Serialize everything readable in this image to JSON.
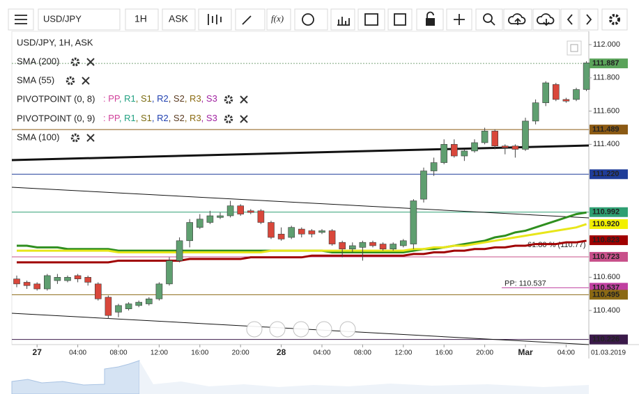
{
  "toolbar": {
    "symbol": "USD/JPY",
    "timeframe": "1H",
    "price_type": "ASK",
    "function": "f(x)"
  },
  "chart_data": {
    "type": "candlestick",
    "title": "USD/JPY, 1H, ASK",
    "categories": [
      null,
      null,
      "27",
      null,
      null,
      null,
      "04:00",
      null,
      null,
      null,
      "08:00",
      null,
      null,
      null,
      "12:00",
      null,
      null,
      null,
      "16:00",
      null,
      null,
      null,
      "20:00",
      null,
      null,
      null,
      "28",
      null,
      null,
      null,
      "04:00",
      null,
      null,
      null,
      "08:00",
      null,
      null,
      null,
      "12:00",
      null,
      null,
      null,
      "16:00",
      null,
      null,
      null,
      "20:00",
      null,
      null,
      null,
      "Mar",
      null,
      null,
      null,
      "04:00",
      null,
      null
    ],
    "open": [
      110.59,
      110.57,
      110.56,
      110.53,
      110.58,
      110.58,
      110.61,
      110.6,
      110.56,
      110.48,
      110.39,
      110.41,
      110.43,
      110.44,
      110.47,
      110.56,
      110.7,
      110.82,
      110.9,
      110.93,
      110.96,
      110.97,
      111.03,
      111.0,
      111.0,
      110.93,
      110.86,
      110.84,
      110.89,
      110.88,
      110.87,
      110.88,
      110.81,
      110.77,
      110.78,
      110.81,
      110.8,
      110.77,
      110.79,
      110.8,
      111.07,
      111.24,
      111.29,
      111.4,
      111.33,
      111.36,
      111.41,
      111.48,
      111.39,
      111.39,
      111.37,
      111.54,
      111.65,
      111.76,
      111.67,
      111.67,
      111.73
    ],
    "high": [
      110.61,
      110.58,
      110.57,
      110.62,
      110.62,
      110.61,
      110.62,
      110.61,
      110.57,
      110.49,
      110.44,
      110.45,
      110.46,
      110.48,
      110.57,
      110.72,
      110.84,
      110.95,
      110.98,
      111.0,
      110.99,
      111.06,
      111.04,
      111.01,
      111.01,
      110.94,
      110.9,
      110.91,
      110.9,
      110.89,
      110.89,
      110.89,
      110.82,
      110.81,
      110.82,
      110.82,
      110.81,
      110.81,
      110.83,
      111.07,
      111.26,
      111.32,
      111.43,
      111.43,
      111.37,
      111.43,
      111.5,
      111.49,
      111.4,
      111.4,
      111.56,
      111.67,
      111.78,
      111.77,
      111.68,
      111.74,
      111.9
    ],
    "low": [
      110.54,
      110.53,
      110.52,
      110.52,
      110.56,
      110.57,
      110.57,
      110.55,
      110.46,
      110.35,
      110.36,
      110.4,
      110.42,
      110.43,
      110.46,
      110.55,
      110.69,
      110.78,
      110.89,
      110.92,
      110.95,
      110.96,
      110.97,
      110.98,
      110.92,
      110.83,
      110.82,
      110.83,
      110.84,
      110.84,
      110.86,
      110.79,
      110.72,
      110.75,
      110.7,
      110.78,
      110.76,
      110.76,
      110.78,
      110.77,
      111.05,
      111.21,
      111.28,
      111.32,
      111.3,
      111.35,
      111.4,
      111.37,
      111.34,
      111.32,
      111.36,
      111.52,
      111.63,
      111.66,
      111.65,
      111.66,
      111.72
    ],
    "close": [
      110.56,
      110.55,
      110.53,
      110.61,
      110.6,
      110.6,
      110.59,
      110.57,
      110.47,
      110.37,
      110.43,
      110.44,
      110.45,
      110.47,
      110.56,
      110.7,
      110.82,
      110.93,
      110.95,
      110.97,
      110.97,
      111.03,
      110.98,
      110.99,
      110.93,
      110.84,
      110.83,
      110.9,
      110.86,
      110.86,
      110.88,
      110.8,
      110.77,
      110.79,
      110.81,
      110.79,
      110.77,
      110.8,
      110.82,
      111.06,
      111.24,
      111.29,
      111.4,
      111.33,
      111.36,
      111.41,
      111.48,
      111.39,
      111.38,
      111.37,
      111.54,
      111.65,
      111.77,
      111.67,
      111.66,
      111.73,
      111.89
    ],
    "up_color": "#5f9f70",
    "down_color": "#d9473b",
    "series": [
      {
        "name": "SMA (200)",
        "color": "#a00000",
        "values": [
          110.69,
          110.69,
          110.69,
          110.69,
          110.69,
          110.69,
          110.69,
          110.69,
          110.69,
          110.69,
          110.7,
          110.7,
          110.7,
          110.7,
          110.7,
          110.7,
          110.7,
          110.71,
          110.71,
          110.71,
          110.71,
          110.71,
          110.71,
          110.72,
          110.72,
          110.72,
          110.72,
          110.72,
          110.72,
          110.73,
          110.73,
          110.73,
          110.73,
          110.73,
          110.73,
          110.73,
          110.73,
          110.73,
          110.73,
          110.74,
          110.74,
          110.75,
          110.75,
          110.76,
          110.76,
          110.77,
          110.77,
          110.78,
          110.78,
          110.79,
          110.79,
          110.8,
          110.8,
          110.8,
          110.81,
          110.81,
          110.82
        ]
      },
      {
        "name": "SMA (55)",
        "color": "#2f8f1f",
        "values": [
          110.79,
          110.79,
          110.78,
          110.78,
          110.78,
          110.77,
          110.77,
          110.77,
          110.77,
          110.77,
          110.76,
          110.76,
          110.76,
          110.76,
          110.76,
          110.76,
          110.76,
          110.76,
          110.76,
          110.76,
          110.76,
          110.76,
          110.76,
          110.76,
          110.76,
          110.76,
          110.76,
          110.76,
          110.76,
          110.76,
          110.76,
          110.75,
          110.75,
          110.75,
          110.75,
          110.75,
          110.75,
          110.75,
          110.75,
          110.76,
          110.77,
          110.77,
          110.78,
          110.79,
          110.8,
          110.81,
          110.82,
          110.84,
          110.85,
          110.87,
          110.88,
          110.9,
          110.92,
          110.94,
          110.96,
          110.98,
          110.99
        ]
      },
      {
        "name": "SMA (100)",
        "color": "#e8e61a",
        "values": [
          110.76,
          110.76,
          110.76,
          110.76,
          110.76,
          110.76,
          110.76,
          110.76,
          110.76,
          110.76,
          110.75,
          110.75,
          110.75,
          110.75,
          110.75,
          110.75,
          110.75,
          110.75,
          110.75,
          110.75,
          110.75,
          110.75,
          110.75,
          110.75,
          110.75,
          110.76,
          110.76,
          110.76,
          110.76,
          110.76,
          110.76,
          110.76,
          110.76,
          110.76,
          110.76,
          110.76,
          110.76,
          110.76,
          110.76,
          110.77,
          110.77,
          110.78,
          110.78,
          110.79,
          110.79,
          110.8,
          110.81,
          110.82,
          110.83,
          110.84,
          110.85,
          110.86,
          110.87,
          110.88,
          110.89,
          110.9,
          110.92
        ]
      }
    ],
    "pivot_legend": [
      {
        "title": "PIVOTPOINT (0, 8)"
      },
      {
        "title": "PIVOTPOINT (0, 9)"
      }
    ],
    "pivot_items": [
      {
        "text": ": PP",
        "color": "#d0409a"
      },
      {
        "text": ", R1",
        "color": "#1fa080"
      },
      {
        "text": ", S1",
        "color": "#7a6a10"
      },
      {
        "text": ", R2",
        "color": "#2040b0"
      },
      {
        "text": ", S2",
        "color": "#5a3a20"
      },
      {
        "text": ", R3",
        "color": "#8a6a10"
      },
      {
        "text": ", S3",
        "color": "#a020a0"
      }
    ],
    "levels": [
      {
        "value": 111.887,
        "label": "111.887",
        "color": "#5aa35a",
        "text_color": "#fff",
        "line": true,
        "dashed": true
      },
      {
        "value": 111.489,
        "label": "111.489",
        "color": "#8b5a14",
        "text_color": "#fff",
        "line": true
      },
      {
        "value": 111.22,
        "label": "111.220",
        "color": "#1f3d99",
        "text_color": "#fff",
        "line": true
      },
      {
        "value": 110.992,
        "label": "110.992",
        "color": "#2f9f72",
        "text_color": "#fff",
        "line": true
      },
      {
        "value": 110.92,
        "label": "110.920",
        "color": "#f2f000",
        "text_color": "#000",
        "line": false
      },
      {
        "value": 110.823,
        "label": "110.823",
        "color": "#a00000",
        "text_color": "#fff",
        "line": false
      },
      {
        "value": 110.723,
        "label": "110.723",
        "color": "#c8508a",
        "text_color": "#fff",
        "line": true
      },
      {
        "value": 110.537,
        "label": "110.537",
        "color": "#c040a0",
        "text_color": "#fff",
        "line": true,
        "annotation": "PP: 110.537"
      },
      {
        "value": 110.495,
        "label": "110.495",
        "color": "#8b6914",
        "text_color": "#fff",
        "line": true
      },
      {
        "value": 110.226,
        "label": "110.226",
        "color": "#3b1a4a",
        "text_color": "#fff",
        "line": true
      }
    ],
    "fib_label": "61.80 % (110.77)",
    "date_label": "01.03.2019",
    "ylim": [
      110.195,
      112.08
    ],
    "yticks": [
      {
        "value": 112,
        "label": "112.000"
      },
      {
        "value": 111.8,
        "label": "111.800"
      },
      {
        "value": 111.6,
        "label": "111.600"
      },
      {
        "value": 111.4,
        "label": "111.400"
      },
      {
        "value": 110.6,
        "label": "110.600"
      },
      {
        "value": 110.4,
        "label": "110.400"
      }
    ]
  }
}
